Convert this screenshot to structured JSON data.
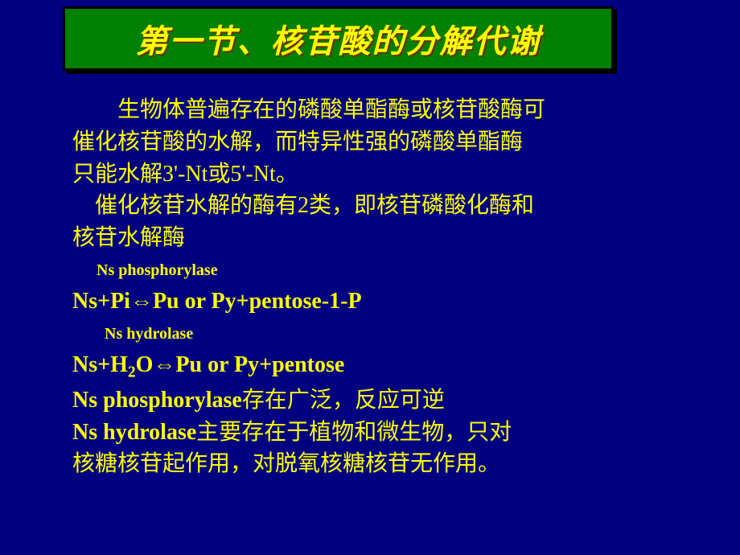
{
  "title": "第一节、核苷酸的分解代谢",
  "para1_l1": "生物体普遍存在的磷酸单酯酶或核苷酸酶可",
  "para1_l2": "催化核苷酸的水解，而特异性强的磷酸单酯酶",
  "para1_l3": "只能水解3'-Nt或5'-Nt。",
  "para2_l1": "催化核苷水解的酶有2类，即核苷磷酸化酶和",
  "para2_l2": "核苷水解酶",
  "enzyme1_label": "Ns phosphorylase",
  "formula1": "Ns+Pi⇔Pu or Py+pentose-1-P",
  "enzyme2_label": "Ns hydrolase",
  "formula2_pre": "Ns+H",
  "formula2_sub": "2",
  "formula2_post": "O⇔Pu or Py+pentose",
  "line1_eng": "Ns phosphorylase",
  "line1_cn": "存在广泛，反应可逆",
  "line2_eng": "Ns hydrolase",
  "line2_cn": "主要存在于植物和微生物，只对",
  "line3": "核糖核苷起作用，对脱氧核糖核苷无作用。",
  "colors": {
    "background": "#000080",
    "title_bg": "#008000",
    "title_text": "#ffff00",
    "body_text": "#ffff00"
  }
}
